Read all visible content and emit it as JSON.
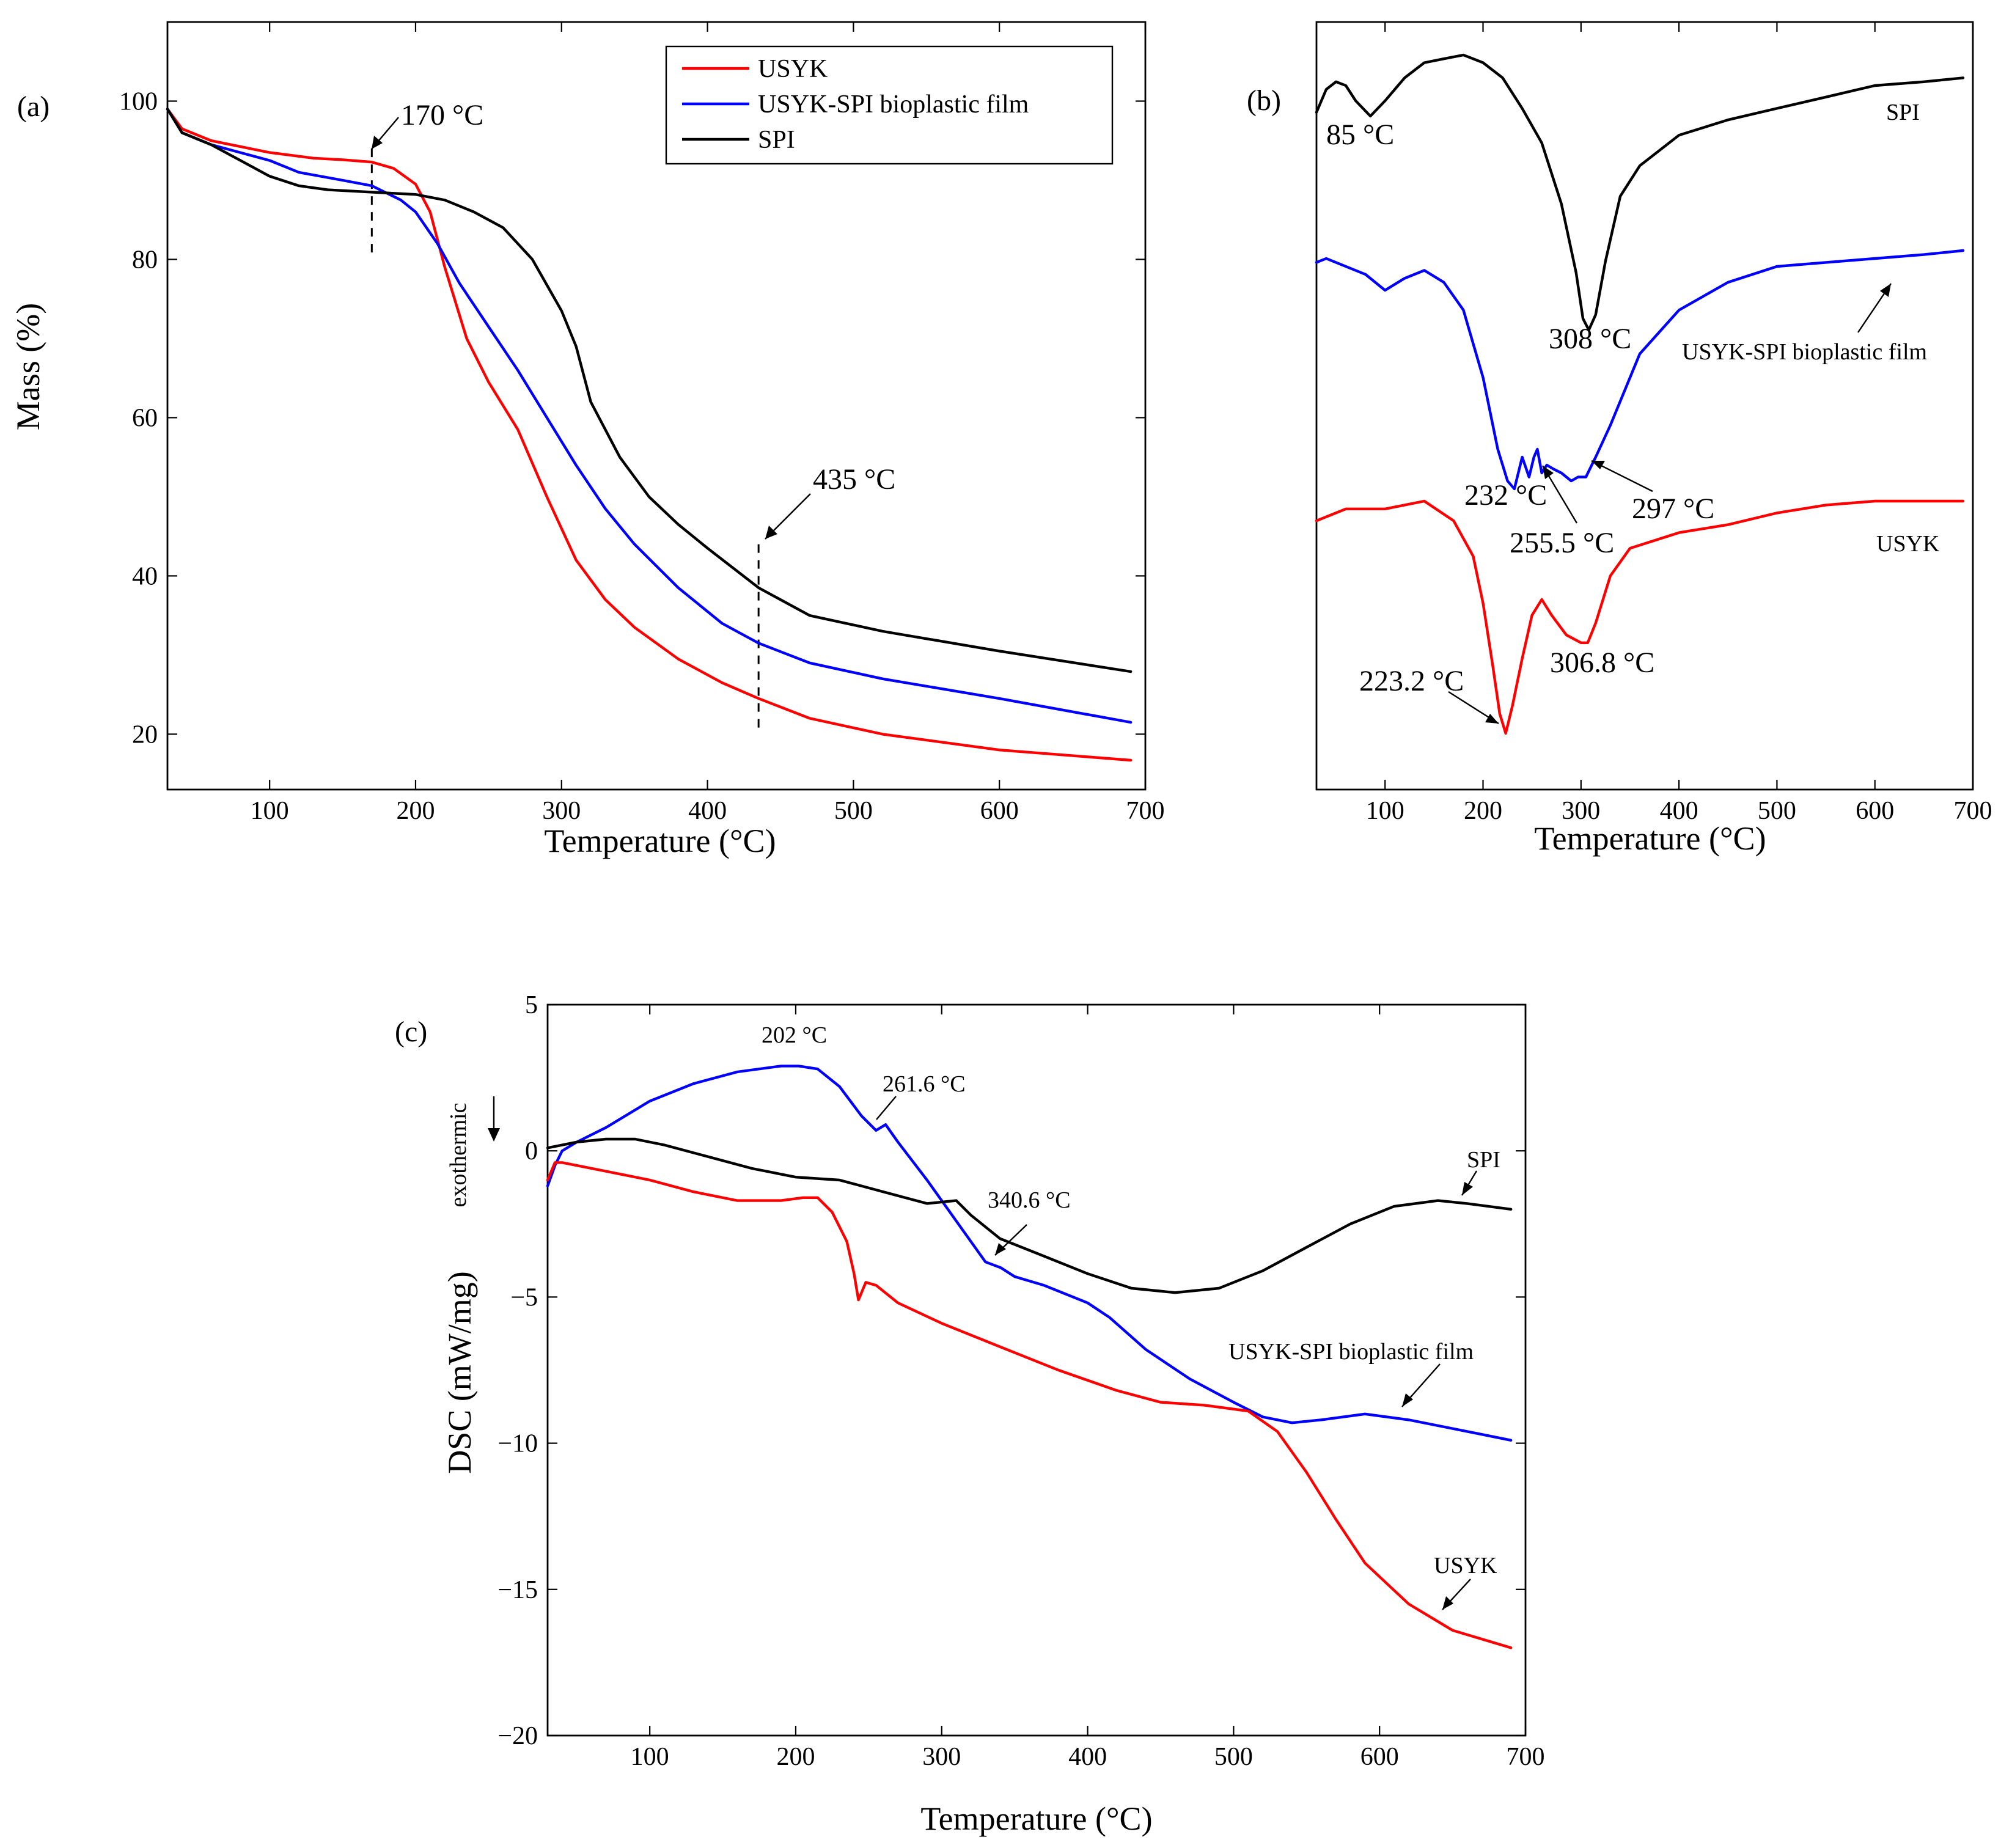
{
  "colors": {
    "USYK": "#ff0000",
    "USYK-SPI bioplastic film": "#0000ff",
    "SPI": "#000000"
  },
  "chart_data": [
    {
      "panel": "(a)",
      "type": "line",
      "title": "",
      "xlabel": "Temperature (°C)",
      "ylabel": "Mass (%)",
      "xlim": [
        30,
        700
      ],
      "ylim": [
        13,
        110
      ],
      "xticks": [
        100,
        200,
        300,
        400,
        500,
        600,
        700
      ],
      "yticks": [
        20,
        40,
        60,
        80,
        100
      ],
      "legend": {
        "position": "top-right",
        "entries": [
          "USYK",
          "USYK-SPI bioplastic film",
          "SPI"
        ]
      },
      "series": [
        {
          "name": "USYK",
          "color": "#ff0000",
          "x": [
            30,
            40,
            60,
            100,
            130,
            150,
            170,
            185,
            200,
            210,
            220,
            235,
            250,
            270,
            290,
            310,
            330,
            350,
            380,
            410,
            435,
            470,
            520,
            600,
            690
          ],
          "y": [
            99,
            96.5,
            95,
            93.5,
            92.8,
            92.6,
            92.3,
            91.5,
            89.5,
            86,
            79,
            70,
            64.5,
            58.5,
            50,
            42,
            37,
            33.5,
            29.5,
            26.5,
            24.5,
            22,
            20,
            18,
            16.7
          ]
        },
        {
          "name": "USYK-SPI bioplastic film",
          "color": "#0000ff",
          "x": [
            30,
            40,
            60,
            100,
            120,
            150,
            170,
            190,
            200,
            215,
            230,
            250,
            270,
            290,
            310,
            330,
            350,
            380,
            410,
            435,
            470,
            520,
            600,
            690
          ],
          "y": [
            99,
            96,
            94.5,
            92.5,
            91,
            90,
            89.3,
            87.5,
            86,
            82,
            77,
            71.5,
            66,
            60,
            54,
            48.5,
            44,
            38.5,
            34,
            31.5,
            29,
            27,
            24.5,
            21.5
          ]
        },
        {
          "name": "SPI",
          "color": "#000000",
          "x": [
            30,
            40,
            60,
            80,
            100,
            120,
            140,
            170,
            200,
            220,
            240,
            260,
            280,
            300,
            310,
            320,
            340,
            360,
            380,
            400,
            435,
            470,
            520,
            600,
            690
          ],
          "y": [
            99,
            96,
            94.5,
            92.5,
            90.5,
            89.3,
            88.8,
            88.5,
            88.2,
            87.5,
            86,
            84,
            80,
            73.5,
            69,
            62,
            55,
            50,
            46.5,
            43.5,
            38.5,
            35,
            33,
            30.5,
            27.9
          ]
        }
      ],
      "annotations": [
        {
          "text": "170 °C",
          "x": 170
        },
        {
          "text": "435 °C",
          "x": 435
        }
      ]
    },
    {
      "panel": "(b)",
      "type": "line",
      "title": "",
      "xlabel": "Temperature (°C)",
      "ylabel": "",
      "xlim": [
        30,
        700
      ],
      "ylim": [
        0,
        1
      ],
      "xticks": [
        100,
        200,
        300,
        400,
        500,
        600,
        700
      ],
      "yticks": [],
      "series": [
        {
          "name": "SPI",
          "color": "#000000",
          "x": [
            30,
            40,
            50,
            60,
            70,
            85,
            100,
            120,
            140,
            160,
            180,
            200,
            220,
            240,
            260,
            280,
            295,
            302,
            308,
            315,
            325,
            340,
            360,
            400,
            450,
            500,
            550,
            600,
            650,
            690
          ],
          "y": [
            0.89,
            0.92,
            0.93,
            0.925,
            0.905,
            0.885,
            0.905,
            0.935,
            0.955,
            0.96,
            0.965,
            0.955,
            0.935,
            0.895,
            0.85,
            0.77,
            0.68,
            0.62,
            0.605,
            0.625,
            0.695,
            0.78,
            0.82,
            0.86,
            0.88,
            0.895,
            0.91,
            0.925,
            0.93,
            0.935
          ]
        },
        {
          "name": "USYK-SPI bioplastic film",
          "color": "#0000ff",
          "x": [
            30,
            40,
            60,
            80,
            100,
            120,
            140,
            160,
            180,
            200,
            215,
            225,
            232,
            240,
            247,
            252,
            255.5,
            260,
            265,
            272,
            280,
            290,
            297,
            305,
            315,
            330,
            360,
            400,
            450,
            500,
            550,
            600,
            650,
            690
          ],
          "y": [
            0.68,
            0.685,
            0.675,
            0.665,
            0.645,
            0.66,
            0.67,
            0.655,
            0.62,
            0.535,
            0.445,
            0.405,
            0.395,
            0.435,
            0.41,
            0.435,
            0.445,
            0.415,
            0.425,
            0.42,
            0.415,
            0.405,
            0.41,
            0.41,
            0.435,
            0.475,
            0.565,
            0.62,
            0.655,
            0.675,
            0.68,
            0.685,
            0.69,
            0.695
          ]
        },
        {
          "name": "USYK",
          "color": "#ff0000",
          "x": [
            30,
            60,
            100,
            140,
            170,
            190,
            200,
            210,
            217,
            223.2,
            230,
            240,
            250,
            260,
            270,
            285,
            300,
            306.8,
            315,
            330,
            350,
            400,
            450,
            500,
            550,
            600,
            650,
            690
          ],
          "y": [
            0.345,
            0.36,
            0.36,
            0.37,
            0.345,
            0.3,
            0.24,
            0.16,
            0.1,
            0.075,
            0.11,
            0.17,
            0.225,
            0.245,
            0.225,
            0.2,
            0.19,
            0.19,
            0.215,
            0.275,
            0.31,
            0.33,
            0.34,
            0.355,
            0.365,
            0.37,
            0.37,
            0.37
          ]
        }
      ],
      "annotations": [
        {
          "text": "85 °C",
          "x": 85
        },
        {
          "text": "308 °C",
          "x": 308
        },
        {
          "text": "232 °C",
          "x": 232
        },
        {
          "text": "255.5 °C",
          "x": 255.5
        },
        {
          "text": "297 °C",
          "x": 297
        },
        {
          "text": "223.2 °C",
          "x": 223.2
        },
        {
          "text": "306.8 °C",
          "x": 306.8
        },
        {
          "text": "SPI",
          "series": "SPI"
        },
        {
          "text": "USYK-SPI bioplastic film",
          "series": "USYK-SPI bioplastic film"
        },
        {
          "text": "USYK",
          "series": "USYK"
        }
      ]
    },
    {
      "panel": "(c)",
      "type": "line",
      "title": "",
      "xlabel": "Temperature (°C)",
      "ylabel": "DSC (mW/mg)",
      "ylabel_extra": "exothermic",
      "xlim": [
        30,
        700
      ],
      "ylim": [
        -20,
        5
      ],
      "xticks": [
        100,
        200,
        300,
        400,
        500,
        600,
        700
      ],
      "yticks": [
        -20,
        -15,
        -10,
        -5,
        0,
        5
      ],
      "series": [
        {
          "name": "USYK-SPI bioplastic film",
          "color": "#0000ff",
          "x": [
            30,
            35,
            40,
            50,
            70,
            100,
            130,
            160,
            190,
            202,
            215,
            230,
            245,
            255,
            261.6,
            270,
            290,
            310,
            330,
            340.6,
            350,
            370,
            400,
            415,
            440,
            470,
            500,
            520,
            540,
            560,
            590,
            620,
            650,
            690
          ],
          "y": [
            -1.2,
            -0.5,
            0,
            0.3,
            0.8,
            1.7,
            2.3,
            2.7,
            2.9,
            2.9,
            2.8,
            2.2,
            1.2,
            0.7,
            0.9,
            0.3,
            -1,
            -2.4,
            -3.8,
            -4,
            -4.3,
            -4.6,
            -5.2,
            -5.7,
            -6.8,
            -7.8,
            -8.6,
            -9.1,
            -9.3,
            -9.2,
            -9,
            -9.2,
            -9.5,
            -9.9
          ]
        },
        {
          "name": "SPI",
          "color": "#000000",
          "x": [
            30,
            50,
            70,
            90,
            110,
            140,
            170,
            200,
            230,
            260,
            290,
            310,
            320,
            340,
            370,
            400,
            430,
            460,
            490,
            520,
            550,
            580,
            610,
            640,
            660,
            690
          ],
          "y": [
            0.1,
            0.3,
            0.4,
            0.4,
            0.2,
            -0.2,
            -0.6,
            -0.9,
            -1,
            -1.4,
            -1.8,
            -1.7,
            -2.2,
            -3,
            -3.6,
            -4.2,
            -4.7,
            -4.85,
            -4.7,
            -4.1,
            -3.3,
            -2.5,
            -1.9,
            -1.7,
            -1.8,
            -2
          ]
        },
        {
          "name": "USYK",
          "color": "#ff0000",
          "x": [
            30,
            35,
            40,
            70,
            100,
            130,
            160,
            190,
            205,
            215,
            225,
            235,
            240,
            243,
            248,
            255,
            270,
            300,
            340,
            380,
            420,
            450,
            480,
            510,
            530,
            550,
            570,
            590,
            620,
            650,
            690
          ],
          "y": [
            -1,
            -0.4,
            -0.4,
            -0.7,
            -1,
            -1.4,
            -1.7,
            -1.7,
            -1.6,
            -1.6,
            -2.1,
            -3.1,
            -4.2,
            -5.1,
            -4.5,
            -4.6,
            -5.2,
            -5.9,
            -6.7,
            -7.5,
            -8.2,
            -8.6,
            -8.7,
            -8.9,
            -9.6,
            -11,
            -12.6,
            -14.1,
            -15.5,
            -16.4,
            -17
          ]
        }
      ],
      "annotations": [
        {
          "text": "202 °C",
          "x": 202
        },
        {
          "text": "261.6 °C",
          "x": 261.6
        },
        {
          "text": "340.6 °C",
          "x": 340.6
        },
        {
          "text": "SPI",
          "series": "SPI"
        },
        {
          "text": "USYK-SPI bioplastic film",
          "series": "USYK-SPI bioplastic film"
        },
        {
          "text": "USYK",
          "series": "USYK"
        }
      ]
    }
  ]
}
